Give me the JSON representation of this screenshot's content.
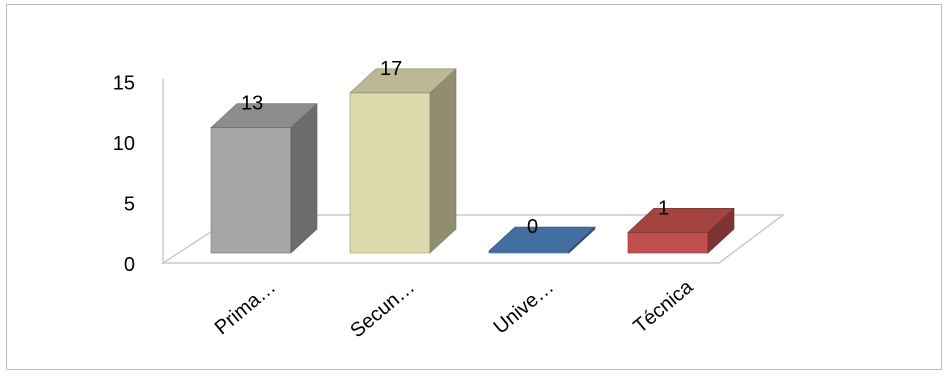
{
  "chart_data": {
    "type": "bar",
    "categories": [
      "Prima…",
      "Secun…",
      "Unive…",
      "Técnica"
    ],
    "values": [
      13,
      17,
      0,
      1
    ],
    "colors": [
      "#a6a6a6",
      "#ddd9ad",
      "#4f81bd",
      "#c0504d"
    ],
    "yticks": [
      0,
      5,
      10,
      15
    ],
    "ylim": [
      0,
      15
    ],
    "grid": false,
    "legend": "none",
    "view": "3d"
  }
}
